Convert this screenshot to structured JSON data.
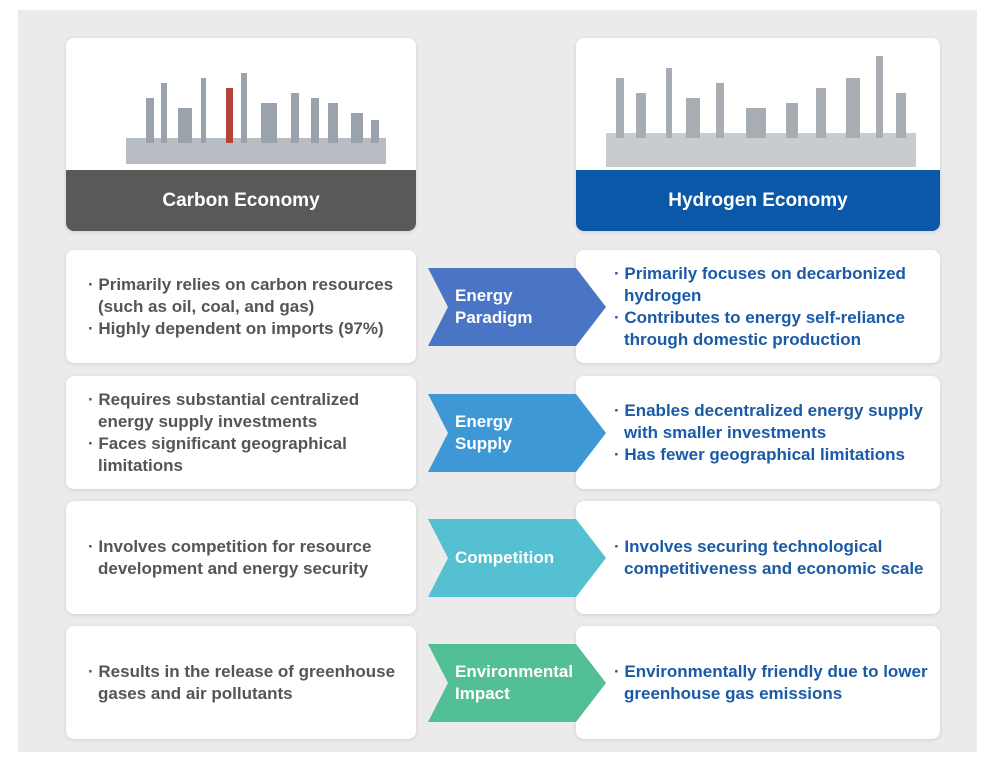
{
  "headers": {
    "left": "Carbon Economy",
    "right": "Hydrogen Economy"
  },
  "rows": [
    {
      "left": [
        "· Primarily relies on carbon resources (such as oil, coal, and gas)",
        "· Highly dependent on imports (97%)"
      ],
      "arrow": "Energy Paradigm",
      "right": [
        "· Primarily focuses on decarbonized hydrogen",
        "· Contributes to energy self-reliance through domestic production"
      ]
    },
    {
      "left": [
        "· Requires substantial centralized energy supply investments",
        "· Faces significant geographical limitations"
      ],
      "arrow": "Energy Supply",
      "right": [
        "· Enables decentralized energy supply with smaller investments",
        "· Has fewer geographical limitations"
      ]
    },
    {
      "left": [
        "· Involves competition for resource development and energy security"
      ],
      "arrow": "Competition",
      "right": [
        "· Involves securing technological competitiveness and economic scale"
      ]
    },
    {
      "left": [
        "· Results in the release of greenhouse gases and air pollutants"
      ],
      "arrow": "Environmental Impact",
      "right": [
        "· Environmentally friendly due to lower greenhouse gas emissions"
      ]
    }
  ]
}
